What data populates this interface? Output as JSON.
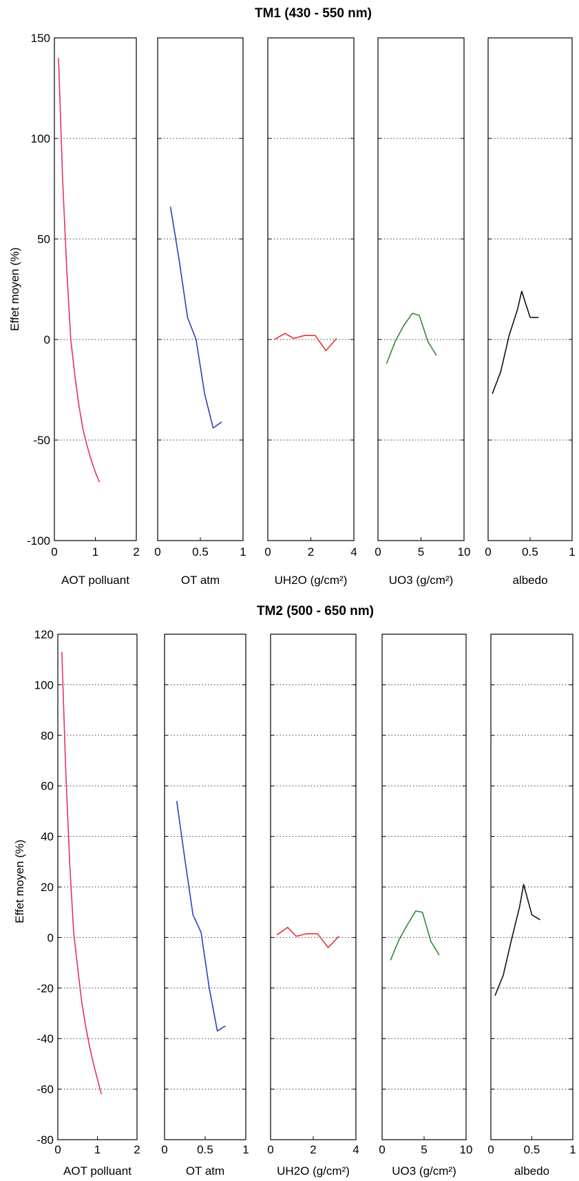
{
  "chart_data": [
    {
      "type": "line",
      "title": "TM1 (430 - 550 nm)",
      "ylabel": "Effet moyen (%)",
      "ylim": [
        -100,
        150
      ],
      "yticks": [
        "-100",
        "-50",
        "0",
        "50",
        "100",
        "150"
      ],
      "grid": "horizontal dotted",
      "panels": [
        {
          "xlabel": "AOT polluant",
          "xlim": [
            0,
            2
          ],
          "xticks": [
            "0",
            "1",
            "2"
          ],
          "color": "#e8305a",
          "series": [
            {
              "x": [
                0.1,
                0.2,
                0.3,
                0.4,
                0.5,
                0.6,
                0.7,
                0.8,
                0.9,
                1.0,
                1.1
              ],
              "y": [
                140,
                80,
                36,
                0,
                -18,
                -33,
                -45,
                -53,
                -60,
                -66,
                -71
              ]
            }
          ]
        },
        {
          "xlabel": "OT atm",
          "xlim": [
            0,
            1
          ],
          "xticks": [
            "0",
            "0.5",
            "1"
          ],
          "color": "#2a3fbf",
          "series": [
            {
              "x": [
                0.15,
                0.25,
                0.35,
                0.45,
                0.55,
                0.65,
                0.75
              ],
              "y": [
                66,
                40,
                11,
                0,
                -27,
                -44,
                -41
              ]
            }
          ]
        },
        {
          "xlabel": "UH2O (g/cm²)",
          "xlim": [
            0,
            4
          ],
          "xticks": [
            "0",
            "2",
            "4"
          ],
          "color": "#e8303a",
          "series": [
            {
              "x": [
                0.3,
                0.8,
                1.2,
                1.7,
                2.2,
                2.7,
                3.2
              ],
              "y": [
                0,
                3,
                0.5,
                2,
                2,
                -5.5,
                0.5
              ]
            }
          ]
        },
        {
          "xlabel": "UO3 (g/cm²)",
          "xlim": [
            0,
            10
          ],
          "xticks": [
            "0",
            "5",
            "10"
          ],
          "color": "#2f8a2f",
          "series": [
            {
              "x": [
                1,
                2,
                3,
                4,
                4.8,
                5.8,
                6.8
              ],
              "y": [
                -12,
                -1,
                7,
                13,
                12,
                -1,
                -8
              ]
            }
          ]
        },
        {
          "xlabel": "albedo",
          "xlim": [
            0,
            1
          ],
          "xticks": [
            "0",
            "0.5",
            "1"
          ],
          "color": "#111111",
          "series": [
            {
              "x": [
                0.05,
                0.15,
                0.25,
                0.35,
                0.4,
                0.5,
                0.6
              ],
              "y": [
                -27,
                -16,
                2,
                15,
                24,
                11,
                11
              ]
            }
          ]
        }
      ]
    },
    {
      "type": "line",
      "title": "TM2 (500 - 650 nm)",
      "ylabel": "Effet moyen (%)",
      "ylim": [
        -80,
        120
      ],
      "yticks": [
        "-80",
        "-60",
        "-40",
        "-20",
        "0",
        "20",
        "40",
        "60",
        "80",
        "100",
        "120"
      ],
      "grid": "horizontal dotted",
      "panels": [
        {
          "xlabel": "AOT polluant",
          "xlim": [
            0,
            2
          ],
          "xticks": [
            "0",
            "1",
            "2"
          ],
          "color": "#e8305a",
          "series": [
            {
              "x": [
                0.1,
                0.2,
                0.3,
                0.4,
                0.5,
                0.6,
                0.7,
                0.8,
                0.9,
                1.0,
                1.1
              ],
              "y": [
                113,
                66,
                29,
                2,
                -12,
                -25,
                -35,
                -43,
                -50,
                -56,
                -62
              ]
            }
          ]
        },
        {
          "xlabel": "OT atm",
          "xlim": [
            0,
            1
          ],
          "xticks": [
            "0",
            "0.5",
            "1"
          ],
          "color": "#2a3fbf",
          "series": [
            {
              "x": [
                0.15,
                0.25,
                0.35,
                0.45,
                0.55,
                0.65,
                0.75
              ],
              "y": [
                54,
                31,
                9,
                2,
                -20,
                -37,
                -35
              ]
            }
          ]
        },
        {
          "xlabel": "UH2O (g/cm²)",
          "xlim": [
            0,
            4
          ],
          "xticks": [
            "0",
            "2",
            "4"
          ],
          "color": "#e8303a",
          "series": [
            {
              "x": [
                0.3,
                0.8,
                1.2,
                1.7,
                2.2,
                2.7,
                3.2
              ],
              "y": [
                1,
                4,
                0.5,
                1.5,
                1.5,
                -4,
                0.5
              ]
            }
          ]
        },
        {
          "xlabel": "UO3 (g/cm²)",
          "xlim": [
            0,
            10
          ],
          "xticks": [
            "0",
            "5",
            "10"
          ],
          "color": "#2f8a2f",
          "series": [
            {
              "x": [
                1,
                2,
                3,
                4,
                4.8,
                5.8,
                6.8
              ],
              "y": [
                -9,
                -1,
                5,
                10.5,
                10,
                -1.5,
                -7
              ]
            }
          ]
        },
        {
          "xlabel": "albedo",
          "xlim": [
            0,
            1
          ],
          "xticks": [
            "0",
            "0.5",
            "1"
          ],
          "color": "#111111",
          "series": [
            {
              "x": [
                0.05,
                0.15,
                0.25,
                0.35,
                0.4,
                0.5,
                0.6
              ],
              "y": [
                -23,
                -15,
                -1,
                12,
                21,
                9,
                7
              ]
            }
          ]
        }
      ]
    }
  ]
}
